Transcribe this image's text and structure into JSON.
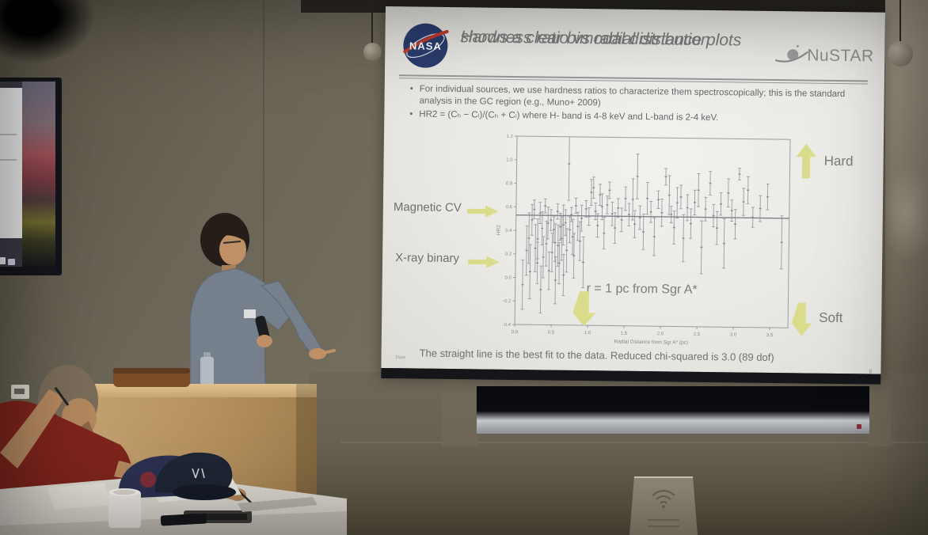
{
  "slide": {
    "nasa_logo": "NASA",
    "title_line1": "Hardness ratio vs radial distance plots",
    "title_line2": "shows a clear bimodal distribution",
    "nustar_logo": "NuSTAR",
    "bullets": [
      "For individual sources, we use hardness ratios to characterize them spectroscopically; this is the standard analysis in the GC region (e.g., Muno+ 2009)",
      "HR2 = (Cₕ − Cₗ)/(Cₕ + Cₗ) where H- band is 4-8 keV and L-band is 2-4 keV."
    ],
    "label_magnetic_cv": "Magnetic CV",
    "label_xray_binary": "X-ray binary",
    "label_hard": "Hard",
    "label_soft": "Soft",
    "annotation": "r = 1 pc from Sgr A*",
    "caption": "The straight line is the best fit to the data. Reduced chi-squared is 3.0 (89 dof)",
    "footer_date": "Date",
    "page_number": "8"
  },
  "chart_data": {
    "type": "scatter",
    "marker": "vertical-error-bars",
    "title": "",
    "xlabel": "Radial Distance from Sgr A* (pc)",
    "ylabel": "HR2",
    "xlim": [
      0,
      3.75
    ],
    "ylim": [
      -0.4,
      1.2
    ],
    "xticks": [
      0.0,
      0.5,
      1.0,
      1.5,
      2.0,
      2.5,
      3.0,
      3.5
    ],
    "yticks": [
      -0.4,
      -0.2,
      0.0,
      0.2,
      0.4,
      0.6,
      0.8,
      1.0,
      1.2
    ],
    "fit_line_y": 0.53,
    "grid": false,
    "legend": "none",
    "points": [
      [
        0.1,
        -0.27,
        0.15
      ],
      [
        0.15,
        0.02,
        0.44
      ],
      [
        0.18,
        0.12,
        0.55
      ],
      [
        0.2,
        -0.18,
        0.28
      ],
      [
        0.22,
        0.36,
        0.62
      ],
      [
        0.25,
        0.5,
        0.66
      ],
      [
        0.27,
        0.05,
        0.45
      ],
      [
        0.3,
        -0.05,
        0.3
      ],
      [
        0.3,
        0.16,
        0.5
      ],
      [
        0.33,
        0.46,
        0.64
      ],
      [
        0.35,
        -0.3,
        0.1
      ],
      [
        0.36,
        0.28,
        0.56
      ],
      [
        0.38,
        0.0,
        0.35
      ],
      [
        0.4,
        0.55,
        0.67
      ],
      [
        0.42,
        0.1,
        0.48
      ],
      [
        0.44,
        0.33,
        0.6
      ],
      [
        0.46,
        -0.1,
        0.22
      ],
      [
        0.48,
        0.4,
        0.58
      ],
      [
        0.5,
        0.05,
        0.38
      ],
      [
        0.52,
        0.3,
        0.52
      ],
      [
        0.54,
        0.14,
        0.46
      ],
      [
        0.55,
        -0.22,
        0.18
      ],
      [
        0.57,
        0.5,
        0.63
      ],
      [
        0.58,
        0.1,
        0.45
      ],
      [
        0.6,
        -0.05,
        0.3
      ],
      [
        0.61,
        0.32,
        0.55
      ],
      [
        0.63,
        0.15,
        0.52
      ],
      [
        0.65,
        0.28,
        0.62
      ],
      [
        0.66,
        -0.15,
        0.2
      ],
      [
        0.68,
        0.36,
        0.58
      ],
      [
        0.7,
        0.05,
        0.42
      ],
      [
        0.72,
        0.66,
        1.28
      ],
      [
        0.74,
        0.3,
        0.52
      ],
      [
        0.76,
        0.48,
        0.6
      ],
      [
        0.78,
        0.2,
        0.5
      ],
      [
        0.8,
        0.0,
        0.38
      ],
      [
        0.82,
        0.55,
        0.68
      ],
      [
        0.85,
        0.32,
        0.56
      ],
      [
        0.88,
        0.15,
        0.48
      ],
      [
        0.9,
        0.4,
        0.62
      ],
      [
        0.93,
        -0.08,
        0.35
      ],
      [
        0.96,
        0.52,
        0.66
      ],
      [
        1.0,
        0.45,
        0.6
      ],
      [
        1.03,
        0.62,
        0.84
      ],
      [
        1.06,
        0.68,
        0.86
      ],
      [
        1.09,
        0.5,
        0.64
      ],
      [
        1.12,
        0.35,
        0.55
      ],
      [
        1.15,
        0.62,
        0.8
      ],
      [
        1.18,
        0.5,
        0.72
      ],
      [
        1.21,
        0.25,
        0.52
      ],
      [
        1.25,
        0.55,
        0.7
      ],
      [
        1.28,
        0.68,
        0.82
      ],
      [
        1.32,
        0.45,
        0.65
      ],
      [
        1.36,
        0.3,
        0.56
      ],
      [
        1.4,
        0.52,
        0.68
      ],
      [
        1.45,
        0.4,
        0.6
      ],
      [
        1.5,
        0.58,
        0.78
      ],
      [
        1.55,
        0.45,
        0.64
      ],
      [
        1.6,
        0.5,
        0.85
      ],
      [
        1.63,
        0.35,
        0.58
      ],
      [
        1.66,
        0.68,
        1.06
      ],
      [
        1.7,
        0.42,
        0.62
      ],
      [
        1.75,
        0.25,
        0.55
      ],
      [
        1.8,
        0.55,
        0.82
      ],
      [
        1.85,
        0.48,
        0.66
      ],
      [
        1.9,
        0.2,
        0.52
      ],
      [
        1.95,
        0.6,
        0.75
      ],
      [
        2.0,
        0.45,
        0.68
      ],
      [
        2.05,
        0.8,
        0.94
      ],
      [
        2.1,
        0.55,
        0.88
      ],
      [
        2.13,
        0.48,
        0.62
      ],
      [
        2.17,
        0.3,
        0.58
      ],
      [
        2.21,
        0.52,
        0.78
      ],
      [
        2.26,
        0.6,
        0.8
      ],
      [
        2.3,
        0.15,
        0.55
      ],
      [
        2.35,
        0.5,
        0.72
      ],
      [
        2.4,
        0.35,
        0.6
      ],
      [
        2.45,
        0.55,
        0.76
      ],
      [
        2.5,
        0.62,
        0.9
      ],
      [
        2.55,
        0.05,
        0.5
      ],
      [
        2.6,
        0.5,
        0.7
      ],
      [
        2.66,
        0.72,
        0.92
      ],
      [
        2.71,
        0.45,
        0.64
      ],
      [
        2.76,
        0.3,
        0.58
      ],
      [
        2.81,
        0.55,
        0.74
      ],
      [
        2.86,
        0.1,
        0.52
      ],
      [
        2.91,
        0.62,
        0.86
      ],
      [
        2.96,
        0.5,
        0.68
      ],
      [
        3.01,
        0.35,
        0.6
      ],
      [
        3.06,
        0.85,
        0.95
      ],
      [
        3.12,
        0.55,
        0.78
      ],
      [
        3.18,
        0.65,
        0.88
      ],
      [
        3.25,
        0.45,
        0.62
      ],
      [
        3.35,
        0.5,
        0.72
      ],
      [
        3.45,
        0.6,
        0.82
      ],
      [
        3.65,
        0.1,
        0.55
      ]
    ]
  },
  "icons": {
    "nasa_meatball": "nasa-meatball-logo",
    "nustar_saturn": "nustar-saturn-icon",
    "green_right_arrow": "arrow-right-icon",
    "green_up_arrow": "arrow-up-icon",
    "green_down_arrow": "arrow-down-icon",
    "wifi": "wifi-icon"
  },
  "colors": {
    "slide_background": "#ecebe7",
    "slide_text_grey": "#6f6f6f",
    "arrow_yellow_green": "#d9dc8b",
    "nasa_blue": "#2b3c6e",
    "nasa_red": "#c03a2b",
    "chart_stroke": "#9a9aa2",
    "wall_brown_grey": "#6b6457",
    "podium_wood": "#b38f5c",
    "shirt_red": "#7e241c",
    "desk_white": "#dcd8d0"
  }
}
